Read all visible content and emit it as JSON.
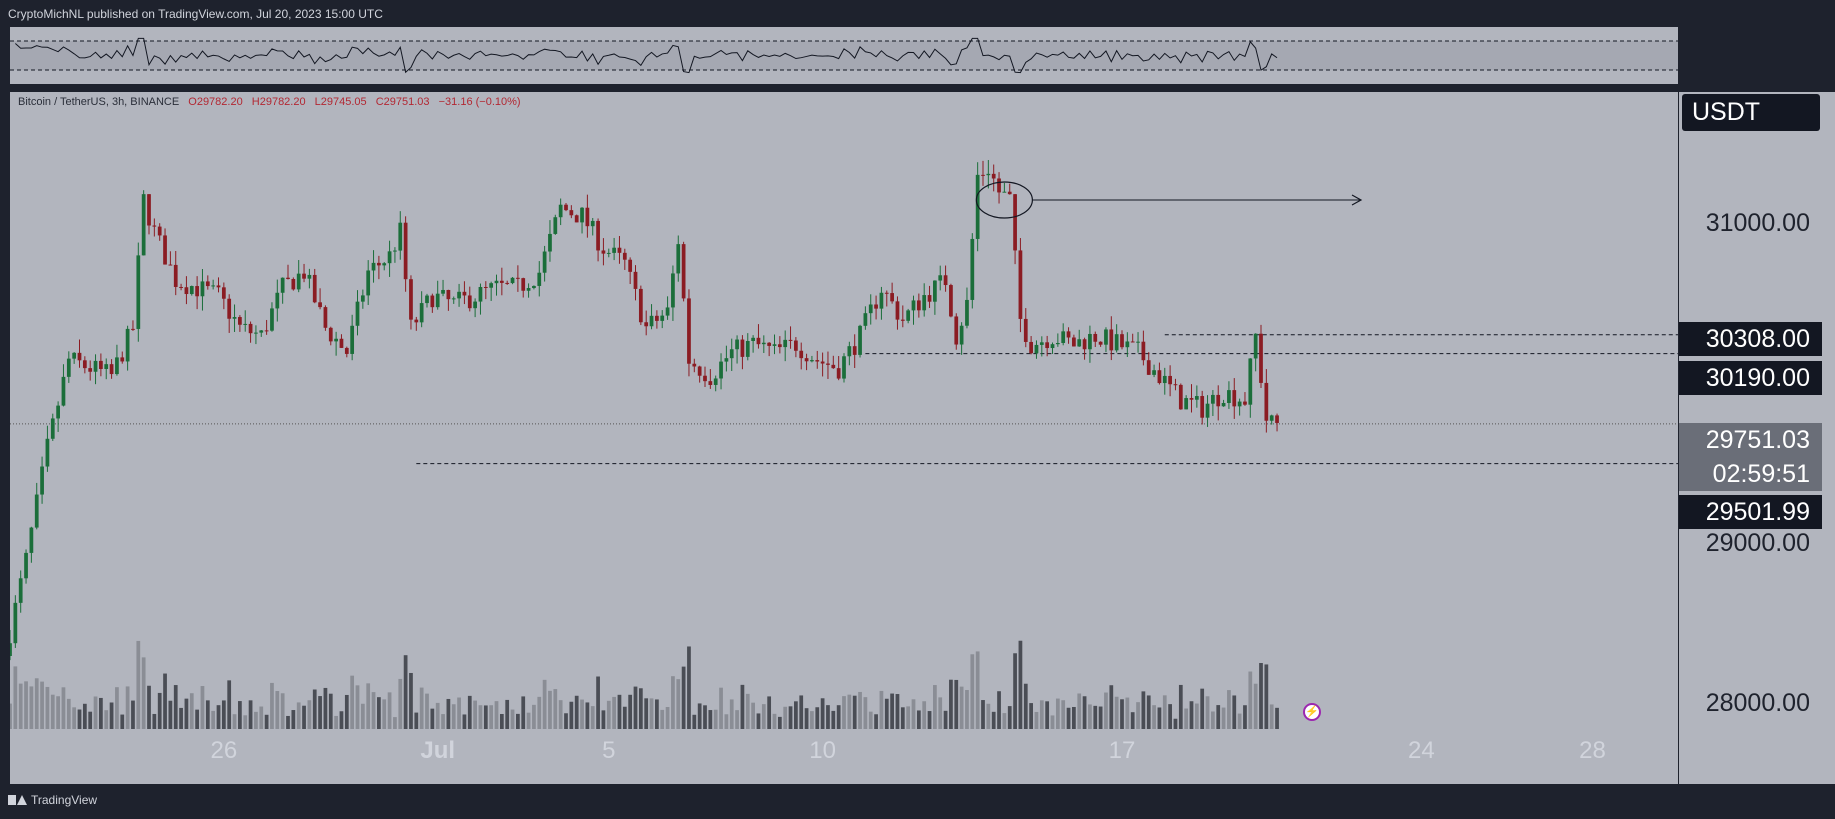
{
  "header": {
    "published": "CryptoMichNL published on TradingView.com, Jul 20, 2023 15:00 UTC"
  },
  "footer": {
    "brand": "TradingView"
  },
  "legend": {
    "symbol": "Bitcoin / TetherUS, 3h, BINANCE",
    "open": "O29782.20",
    "high": "H29782.20",
    "low": "L29745.05",
    "close": "C29751.03",
    "change": "−31.16 (−0.10%)"
  },
  "currency_label": "USDT",
  "price_labels": {
    "level_high": "30308.00",
    "level_mid": "30190.00",
    "last": "29751.03",
    "countdown": "02:59:51",
    "level_low": "29501.99"
  },
  "colors": {
    "background": "#1e222d",
    "pane": "#b2b5be",
    "up": "#1b6e3a",
    "down": "#8b1c23",
    "label_dark": "#131722",
    "label_gray": "#6a6e78"
  },
  "chart_data": {
    "type": "candlestick",
    "symbol": "BTCUSDT",
    "interval": "3h",
    "price_ticks": [
      "31000.00",
      "30000.00",
      "29000.00",
      "28000.00"
    ],
    "price_tick_values": [
      31000,
      30000,
      29000,
      28000
    ],
    "date_ticks": [
      "26",
      "Jul",
      "5",
      "10",
      "17",
      "24",
      "28"
    ],
    "date_tick_values": [
      "2023-06-26",
      "2023-07-01",
      "2023-07-05",
      "2023-07-10",
      "2023-07-17",
      "2023-07-24",
      "2023-07-28"
    ],
    "date_range": [
      "2023-06-21",
      "2023-07-30"
    ],
    "ylim": [
      27750,
      31700
    ],
    "horizontal_levels": [
      30308.0,
      30190.0,
      29501.99
    ],
    "last_price": 29751.03,
    "price_path": [
      [
        "2023-06-21T00:00",
        28300
      ],
      [
        "2023-06-21T12:00",
        28900
      ],
      [
        "2023-06-22T00:00",
        29600
      ],
      [
        "2023-06-22T12:00",
        30150
      ],
      [
        "2023-06-23T00:00",
        30100
      ],
      [
        "2023-06-23T12:00",
        30050
      ],
      [
        "2023-06-24T00:00",
        30350
      ],
      [
        "2023-06-24T06:00",
        31150
      ],
      [
        "2023-06-24T12:00",
        30950
      ],
      [
        "2023-06-25T00:00",
        30650
      ],
      [
        "2023-06-25T12:00",
        30600
      ],
      [
        "2023-06-26T00:00",
        30550
      ],
      [
        "2023-06-26T12:00",
        30350
      ],
      [
        "2023-06-27T00:00",
        30300
      ],
      [
        "2023-06-27T12:00",
        30600
      ],
      [
        "2023-06-28T00:00",
        30700
      ],
      [
        "2023-06-28T12:00",
        30350
      ],
      [
        "2023-06-29T00:00",
        30200
      ],
      [
        "2023-06-29T12:00",
        30700
      ],
      [
        "2023-06-30T00:00",
        30800
      ],
      [
        "2023-06-30T06:00",
        30950
      ],
      [
        "2023-06-30T12:00",
        30350
      ],
      [
        "2023-07-01T00:00",
        30550
      ],
      [
        "2023-07-01T12:00",
        30500
      ],
      [
        "2023-07-02T00:00",
        30550
      ],
      [
        "2023-07-02T12:00",
        30600
      ],
      [
        "2023-07-03T00:00",
        30600
      ],
      [
        "2023-07-03T12:00",
        30700
      ],
      [
        "2023-07-04T00:00",
        31100
      ],
      [
        "2023-07-04T12:00",
        31050
      ],
      [
        "2023-07-05T00:00",
        30850
      ],
      [
        "2023-07-05T12:00",
        30750
      ],
      [
        "2023-07-06T00:00",
        30350
      ],
      [
        "2023-07-06T12:00",
        30450
      ],
      [
        "2023-07-06T18:00",
        30900
      ],
      [
        "2023-07-07T00:00",
        30150
      ],
      [
        "2023-07-07T12:00",
        30050
      ],
      [
        "2023-07-08T00:00",
        30200
      ],
      [
        "2023-07-08T12:00",
        30250
      ],
      [
        "2023-07-09T00:00",
        30200
      ],
      [
        "2023-07-09T12:00",
        30250
      ],
      [
        "2023-07-10T00:00",
        30150
      ],
      [
        "2023-07-10T12:00",
        30100
      ],
      [
        "2023-07-11T00:00",
        30300
      ],
      [
        "2023-07-11T12:00",
        30600
      ],
      [
        "2023-07-12T00:00",
        30400
      ],
      [
        "2023-07-12T12:00",
        30550
      ],
      [
        "2023-07-13T00:00",
        30650
      ],
      [
        "2023-07-13T06:00",
        30300
      ],
      [
        "2023-07-13T12:00",
        30500
      ],
      [
        "2023-07-13T18:00",
        31300
      ],
      [
        "2023-07-14T00:00",
        31350
      ],
      [
        "2023-07-14T06:00",
        31200
      ],
      [
        "2023-07-14T12:00",
        31150
      ],
      [
        "2023-07-14T18:00",
        30400
      ],
      [
        "2023-07-15T00:00",
        30250
      ],
      [
        "2023-07-15T12:00",
        30300
      ],
      [
        "2023-07-16T00:00",
        30250
      ],
      [
        "2023-07-16T12:00",
        30300
      ],
      [
        "2023-07-17T00:00",
        30250
      ],
      [
        "2023-07-17T12:00",
        30200
      ],
      [
        "2023-07-18T00:00",
        30050
      ],
      [
        "2023-07-18T12:00",
        29900
      ],
      [
        "2023-07-19T00:00",
        29850
      ],
      [
        "2023-07-19T12:00",
        29950
      ],
      [
        "2023-07-20T00:00",
        29900
      ],
      [
        "2023-07-20T06:00",
        30300
      ],
      [
        "2023-07-20T12:00",
        29782
      ],
      [
        "2023-07-20T15:00",
        29751
      ]
    ]
  }
}
